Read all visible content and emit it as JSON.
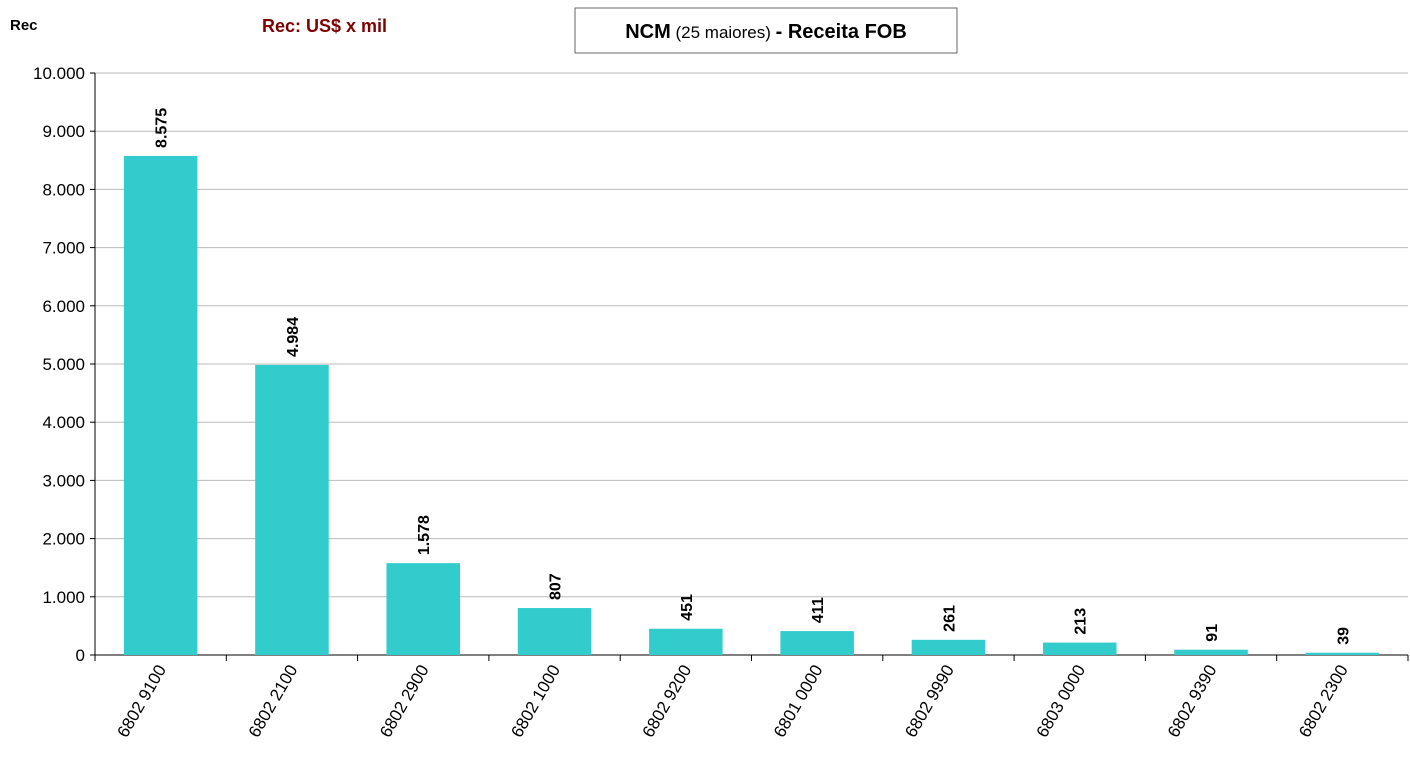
{
  "chart_data": {
    "type": "bar",
    "y_axis_label": "Rec",
    "unit_note": "Rec: US$ x mil",
    "title_parts": [
      "NCM",
      "(25 maiores)",
      "- Receita FOB"
    ],
    "categories": [
      "6802 9100",
      "6802 2100",
      "6802 2900",
      "6802 1000",
      "6802 9200",
      "6801 0000",
      "6802 9990",
      "6803 0000",
      "6802 9390",
      "6802 2300"
    ],
    "values": [
      8575,
      4984,
      1578,
      807,
      451,
      411,
      261,
      213,
      91,
      39
    ],
    "value_labels": [
      "8.575",
      "4.984",
      "1.578",
      "807",
      "451",
      "411",
      "261",
      "213",
      "91",
      "39"
    ],
    "color": "#33cccc",
    "ylim": [
      0,
      10000
    ],
    "yticks": [
      0,
      {
        "value": 1000,
        "label": "1.000"
      },
      {
        "value": 2000,
        "label": "2.000"
      },
      {
        "value": 3000,
        "label": "3.000"
      },
      {
        "value": 4000,
        "label": "4.000"
      },
      {
        "value": 5000,
        "label": "5.000"
      },
      {
        "value": 6000,
        "label": "6.000"
      },
      {
        "value": 7000,
        "label": "7.000"
      },
      {
        "value": 8000,
        "label": "8.000"
      },
      {
        "value": 9000,
        "label": "9.000"
      },
      {
        "value": 10000,
        "label": "10.000"
      }
    ],
    "grid": true
  }
}
